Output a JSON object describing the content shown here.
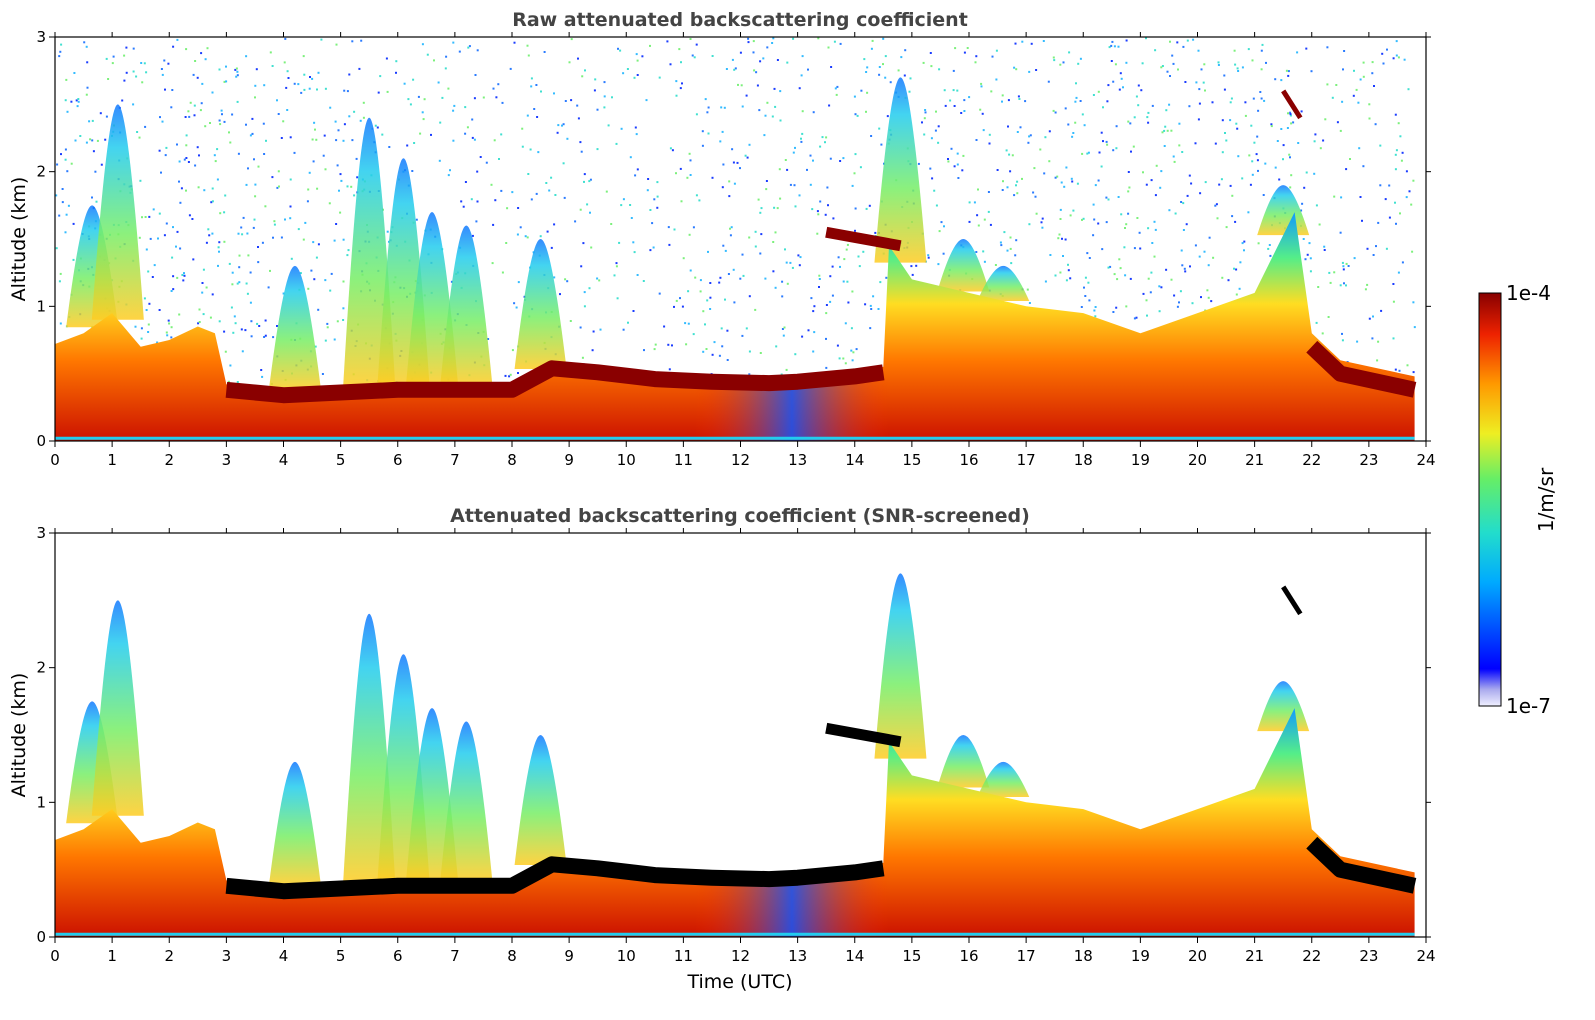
{
  "chart_data": [
    {
      "type": "heatmap",
      "title": "Raw attenuated backscattering coefficient",
      "xlabel": "",
      "ylabel": "Altitude (km)",
      "xlim": [
        0,
        24
      ],
      "ylim": [
        0,
        3
      ],
      "x_ticks": [
        "0",
        "1",
        "2",
        "3",
        "4",
        "5",
        "6",
        "7",
        "8",
        "9",
        "10",
        "11",
        "12",
        "13",
        "14",
        "15",
        "16",
        "17",
        "18",
        "19",
        "20",
        "21",
        "22",
        "23",
        "24"
      ],
      "y_ticks": [
        "0",
        "1",
        "2",
        "3"
      ],
      "colorscale": "jet",
      "data_end_time": 23.8,
      "noise_above_boundary_layer": true,
      "boundary_layer_top_km": [
        [
          0.0,
          0.72
        ],
        [
          0.5,
          0.8
        ],
        [
          1.0,
          0.95
        ],
        [
          1.5,
          0.7
        ],
        [
          2.0,
          0.75
        ],
        [
          2.5,
          0.85
        ],
        [
          2.8,
          0.8
        ],
        [
          3.0,
          0.42
        ],
        [
          4.0,
          0.38
        ],
        [
          5.0,
          0.4
        ],
        [
          6.0,
          0.42
        ],
        [
          7.0,
          0.42
        ],
        [
          8.0,
          0.42
        ],
        [
          8.7,
          0.58
        ],
        [
          9.5,
          0.55
        ],
        [
          10.5,
          0.5
        ],
        [
          11.5,
          0.48
        ],
        [
          12.5,
          0.47
        ],
        [
          13.0,
          0.48
        ],
        [
          14.0,
          0.52
        ],
        [
          14.5,
          0.55
        ],
        [
          14.6,
          1.45
        ],
        [
          15.0,
          1.2
        ],
        [
          16.0,
          1.1
        ],
        [
          17.0,
          1.0
        ],
        [
          18.0,
          0.95
        ],
        [
          19.0,
          0.8
        ],
        [
          20.0,
          0.95
        ],
        [
          21.0,
          1.1
        ],
        [
          21.7,
          1.7
        ],
        [
          22.0,
          0.8
        ],
        [
          22.5,
          0.6
        ],
        [
          23.8,
          0.48
        ]
      ],
      "elevated_layer": {
        "x_range": [
          13.5,
          14.8
        ],
        "altitude_km": [
          1.55,
          1.45
        ]
      },
      "thin_layer": {
        "x_range": [
          21.5,
          21.8
        ],
        "altitude_km": [
          2.6,
          2.4
        ]
      }
    },
    {
      "type": "heatmap",
      "title": "Attenuated backscattering coefficient (SNR-screened)",
      "xlabel": "Time (UTC)",
      "ylabel": "Altitude (km)",
      "xlim": [
        0,
        24
      ],
      "ylim": [
        0,
        3
      ],
      "x_ticks": [
        "0",
        "1",
        "2",
        "3",
        "4",
        "5",
        "6",
        "7",
        "8",
        "9",
        "10",
        "11",
        "12",
        "13",
        "14",
        "15",
        "16",
        "17",
        "18",
        "19",
        "20",
        "21",
        "22",
        "23",
        "24"
      ],
      "y_ticks": [
        "0",
        "1",
        "2",
        "3"
      ],
      "colorscale": "jet",
      "data_end_time": 23.8,
      "noise_above_boundary_layer": false,
      "boundary_layer_top_km": [
        [
          0.0,
          0.72
        ],
        [
          0.5,
          0.8
        ],
        [
          1.0,
          0.95
        ],
        [
          1.5,
          0.7
        ],
        [
          2.0,
          0.75
        ],
        [
          2.5,
          0.85
        ],
        [
          2.8,
          0.8
        ],
        [
          3.0,
          0.42
        ],
        [
          4.0,
          0.38
        ],
        [
          5.0,
          0.4
        ],
        [
          6.0,
          0.42
        ],
        [
          7.0,
          0.42
        ],
        [
          8.0,
          0.42
        ],
        [
          8.7,
          0.58
        ],
        [
          9.5,
          0.55
        ],
        [
          10.5,
          0.5
        ],
        [
          11.5,
          0.48
        ],
        [
          12.5,
          0.47
        ],
        [
          13.0,
          0.48
        ],
        [
          14.0,
          0.52
        ],
        [
          14.5,
          0.55
        ],
        [
          14.6,
          1.45
        ],
        [
          15.0,
          1.2
        ],
        [
          16.0,
          1.1
        ],
        [
          17.0,
          1.0
        ],
        [
          18.0,
          0.95
        ],
        [
          19.0,
          0.8
        ],
        [
          20.0,
          0.95
        ],
        [
          21.0,
          1.1
        ],
        [
          21.7,
          1.7
        ],
        [
          22.0,
          0.8
        ],
        [
          22.5,
          0.6
        ],
        [
          23.8,
          0.48
        ]
      ],
      "elevated_layer": {
        "x_range": [
          13.5,
          14.8
        ],
        "altitude_km": [
          1.55,
          1.45
        ]
      },
      "thin_layer": {
        "x_range": [
          21.5,
          21.8
        ],
        "altitude_km": [
          2.6,
          2.4
        ]
      }
    }
  ],
  "plumes": [
    {
      "t": 0.65,
      "top": 1.75
    },
    {
      "t": 1.1,
      "top": 2.5
    },
    {
      "t": 4.2,
      "top": 1.3
    },
    {
      "t": 5.5,
      "top": 2.4
    },
    {
      "t": 6.1,
      "top": 2.1
    },
    {
      "t": 6.6,
      "top": 1.7
    },
    {
      "t": 7.2,
      "top": 1.6
    },
    {
      "t": 8.5,
      "top": 1.5
    },
    {
      "t": 14.8,
      "top": 2.7
    },
    {
      "t": 15.9,
      "top": 1.5
    },
    {
      "t": 16.6,
      "top": 1.3
    },
    {
      "t": 21.5,
      "top": 1.9
    }
  ],
  "colorbar": {
    "max_label": "1e-4",
    "min_label": "1e-7",
    "unit": "1/m/sr"
  }
}
